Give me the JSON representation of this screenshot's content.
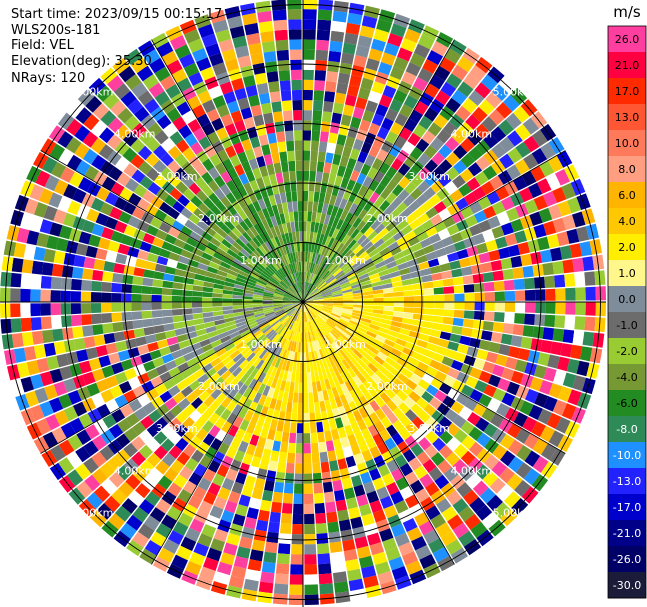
{
  "header": {
    "start_time": "Start time: 2023/09/15 00:15:17",
    "instrument": "WLS200s-181",
    "field": "Field: VEL",
    "elevation": "Elevation(deg): 35.30",
    "nrays": "NRays: 120"
  },
  "colorbar": {
    "unit": "m/s",
    "ticks": [
      "26.0",
      "21.0",
      "17.0",
      "13.0",
      "10.0",
      "8.0",
      "6.0",
      "4.0",
      "2.0",
      "1.0",
      "0.0",
      "-1.0",
      "-2.0",
      "-4.0",
      "-6.0",
      "-8.0",
      "-10.0",
      "-13.0",
      "-17.0",
      "-21.0",
      "-26.0",
      "-30.0"
    ],
    "colors": [
      "#ff3fa0",
      "#ff0040",
      "#ff2a00",
      "#ff5733",
      "#ff7a5a",
      "#ff9e80",
      "#ffb400",
      "#ffc800",
      "#ffee00",
      "#fff68c",
      "#7f8c99",
      "#6c6c6c",
      "#99cc33",
      "#779933",
      "#228b22",
      "#2e8b57",
      "#1e90ff",
      "#2222ff",
      "#0000cc",
      "#000088",
      "#000066",
      "#1b1b3a"
    ]
  },
  "chart_data": {
    "type": "heatmap",
    "projection": "polar PPI",
    "field": "VEL",
    "units": "m/s",
    "n_rays": 120,
    "range_rings_km": [
      1.0,
      2.0,
      3.0,
      4.0,
      5.0
    ],
    "ring_labels": [
      "1.00km",
      "2.00km",
      "3.00km",
      "4.00km",
      "5.00km"
    ],
    "colorscale_range": [
      -30.0,
      26.0
    ],
    "grid": true
  }
}
